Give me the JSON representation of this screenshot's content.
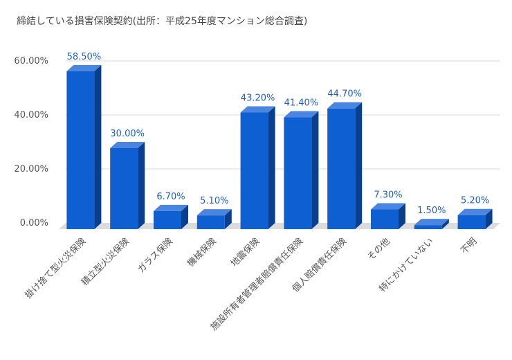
{
  "chart_data": {
    "type": "bar",
    "title": "締結している損害保険契約(出所：平成25年度マンション総合調査)",
    "categories": [
      "掛け捨て型火災保険",
      "積立型火災保険",
      "ガラス保険",
      "機械保険",
      "地震保険",
      "施設所有者管理者賠償責任保険",
      "個人賠償責任保険",
      "その他",
      "特にかけていない",
      "不明"
    ],
    "values": [
      58.5,
      30.0,
      6.7,
      5.1,
      43.2,
      41.4,
      44.7,
      7.3,
      1.5,
      5.2
    ],
    "data_labels": [
      "58.50%",
      "30.00%",
      "6.70%",
      "5.10%",
      "43.20%",
      "41.40%",
      "44.70%",
      "7.30%",
      "1.50%",
      "5.20%"
    ],
    "y_ticks": [
      0,
      20,
      40,
      60
    ],
    "y_tick_labels": [
      "0.00%",
      "20.00%",
      "40.00%",
      "60.00%"
    ],
    "ylim": [
      0,
      60
    ],
    "grid": true,
    "style": "3d",
    "colors": {
      "bar_front": "#0d5fd2",
      "bar_top": "#4a86e0",
      "bar_side": "#0a3f8c",
      "floor": "#dcdcdc",
      "grid": "#d9d9d9",
      "label": "#1f5fbf"
    }
  }
}
